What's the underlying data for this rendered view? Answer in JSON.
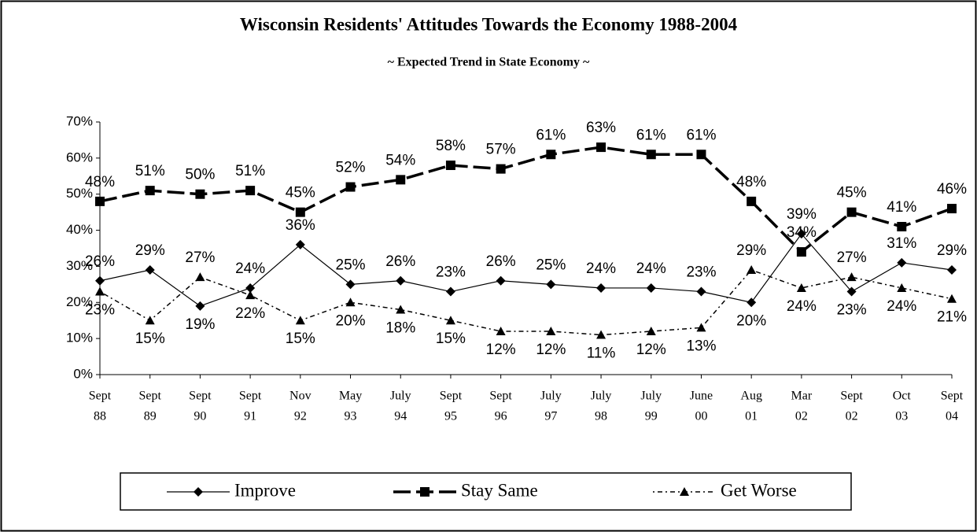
{
  "chart_data": {
    "type": "line",
    "title": "Wisconsin Residents' Attitudes Towards the Economy 1988-2004",
    "subtitle": "~ Expected Trend in State Economy ~",
    "categories": [
      [
        "Sept",
        "88"
      ],
      [
        "Sept",
        "89"
      ],
      [
        "Sept",
        "90"
      ],
      [
        "Sept",
        "91"
      ],
      [
        "Nov",
        "92"
      ],
      [
        "May",
        "93"
      ],
      [
        "July",
        "94"
      ],
      [
        "Sept",
        "95"
      ],
      [
        "Sept",
        "96"
      ],
      [
        "July",
        "97"
      ],
      [
        "July",
        "98"
      ],
      [
        "July",
        "99"
      ],
      [
        "June",
        "00"
      ],
      [
        "Aug",
        "01"
      ],
      [
        "Mar",
        "02"
      ],
      [
        "Sept",
        "02"
      ],
      [
        "Oct",
        "03"
      ],
      [
        "Sept",
        "04"
      ]
    ],
    "ylim": [
      0,
      70
    ],
    "yticks": [
      {
        "value": 0,
        "label": "0%"
      },
      {
        "value": 10,
        "label": "10%"
      },
      {
        "value": 20,
        "label": "20%"
      },
      {
        "value": 30,
        "label": "30%"
      },
      {
        "value": 40,
        "label": "40%"
      },
      {
        "value": 50,
        "label": "50%"
      },
      {
        "value": 60,
        "label": "60%"
      },
      {
        "value": 70,
        "label": "70%"
      }
    ],
    "grid": false,
    "series": [
      {
        "name": "Improve",
        "color": "#000000",
        "marker": "diamond",
        "values": [
          26,
          29,
          19,
          24,
          36,
          25,
          26,
          23,
          26,
          25,
          24,
          24,
          23,
          20,
          39,
          23,
          31,
          29
        ],
        "value_labels": [
          "26%",
          "29%",
          "19%",
          "24%",
          "36%",
          "25%",
          "26%",
          "23%",
          "26%",
          "25%",
          "24%",
          "24%",
          "23%",
          "20%",
          "39%",
          "23%",
          "31%",
          "29%"
        ]
      },
      {
        "name": "Stay Same",
        "color": "#000000",
        "marker": "square",
        "values": [
          48,
          51,
          50,
          51,
          45,
          52,
          54,
          58,
          57,
          61,
          63,
          61,
          61,
          48,
          34,
          45,
          41,
          46
        ],
        "value_labels": [
          "48%",
          "51%",
          "50%",
          "51%",
          "45%",
          "52%",
          "54%",
          "58%",
          "57%",
          "61%",
          "63%",
          "61%",
          "61%",
          "48%",
          "34%",
          "45%",
          "41%",
          "46%"
        ]
      },
      {
        "name": "Get Worse",
        "color": "#000000",
        "marker": "triangle",
        "values": [
          23,
          15,
          27,
          22,
          15,
          20,
          18,
          15,
          12,
          12,
          11,
          12,
          13,
          29,
          24,
          27,
          24,
          21
        ],
        "value_labels": [
          "23%",
          "15%",
          "27%",
          "22%",
          "15%",
          "20%",
          "18%",
          "15%",
          "12%",
          "12%",
          "11%",
          "12%",
          "13%",
          "29%",
          "24%",
          "27%",
          "24%",
          "21%"
        ]
      }
    ]
  }
}
